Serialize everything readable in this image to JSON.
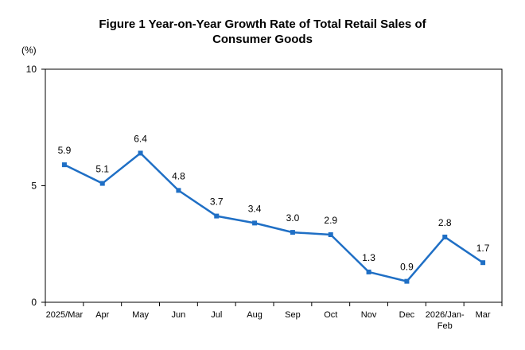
{
  "chart_data": {
    "type": "line",
    "title_line1": "Figure 1 Year-on-Year Growth Rate of Total Retail Sales of",
    "title_line2": "Consumer Goods",
    "y_unit": "(%)",
    "ylim": [
      0,
      10
    ],
    "yticks": [
      "0",
      "5",
      "10"
    ],
    "grid": false,
    "line_color": "#1f6fc5",
    "categories": [
      [
        "2025/Mar"
      ],
      [
        "Apr"
      ],
      [
        "May"
      ],
      [
        "Jun"
      ],
      [
        "Jul"
      ],
      [
        "Aug"
      ],
      [
        "Sep"
      ],
      [
        "Oct"
      ],
      [
        "Nov"
      ],
      [
        "Dec"
      ],
      [
        "2026/Jan-",
        "Feb"
      ],
      [
        "Mar"
      ]
    ],
    "values": [
      5.9,
      5.1,
      6.4,
      4.8,
      3.7,
      3.4,
      3.0,
      2.9,
      1.3,
      0.9,
      2.8,
      1.7
    ],
    "data_labels": [
      "5.9",
      "5.1",
      "6.4",
      "4.8",
      "3.7",
      "3.4",
      "3.0",
      "2.9",
      "1.3",
      "0.9",
      "2.8",
      "1.7"
    ]
  }
}
